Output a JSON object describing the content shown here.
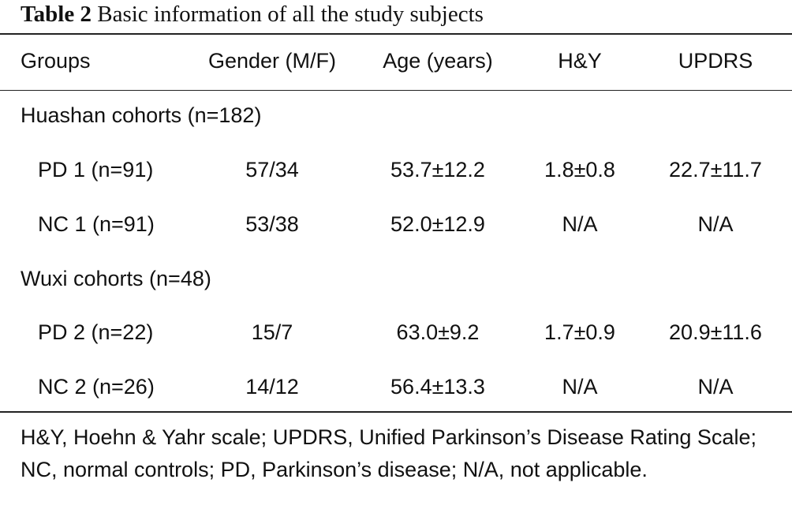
{
  "caption": {
    "label": "Table 2",
    "text": "Basic information of all the study subjects"
  },
  "headers": [
    "Groups",
    "Gender (M/F)",
    "Age (years)",
    "H&Y",
    "UPDRS"
  ],
  "sections": [
    {
      "title": "Huashan cohorts (n=182)",
      "rows": [
        [
          "PD 1 (n=91)",
          "57/34",
          "53.7±12.2",
          "1.8±0.8",
          "22.7±11.7"
        ],
        [
          "NC 1 (n=91)",
          "53/38",
          "52.0±12.9",
          "N/A",
          "N/A"
        ]
      ]
    },
    {
      "title": "Wuxi cohorts (n=48)",
      "rows": [
        [
          "PD 2 (n=22)",
          "15/7",
          "63.0±9.2",
          "1.7±0.9",
          "20.9±11.6"
        ],
        [
          "NC 2 (n=26)",
          "14/12",
          "56.4±13.3",
          "N/A",
          "N/A"
        ]
      ]
    }
  ],
  "footnote": "H&Y, Hoehn & Yahr scale; UPDRS, Unified Parkinson’s Disease Rating Scale; NC, normal controls; PD, Parkinson’s disease; N/A, not applicable."
}
